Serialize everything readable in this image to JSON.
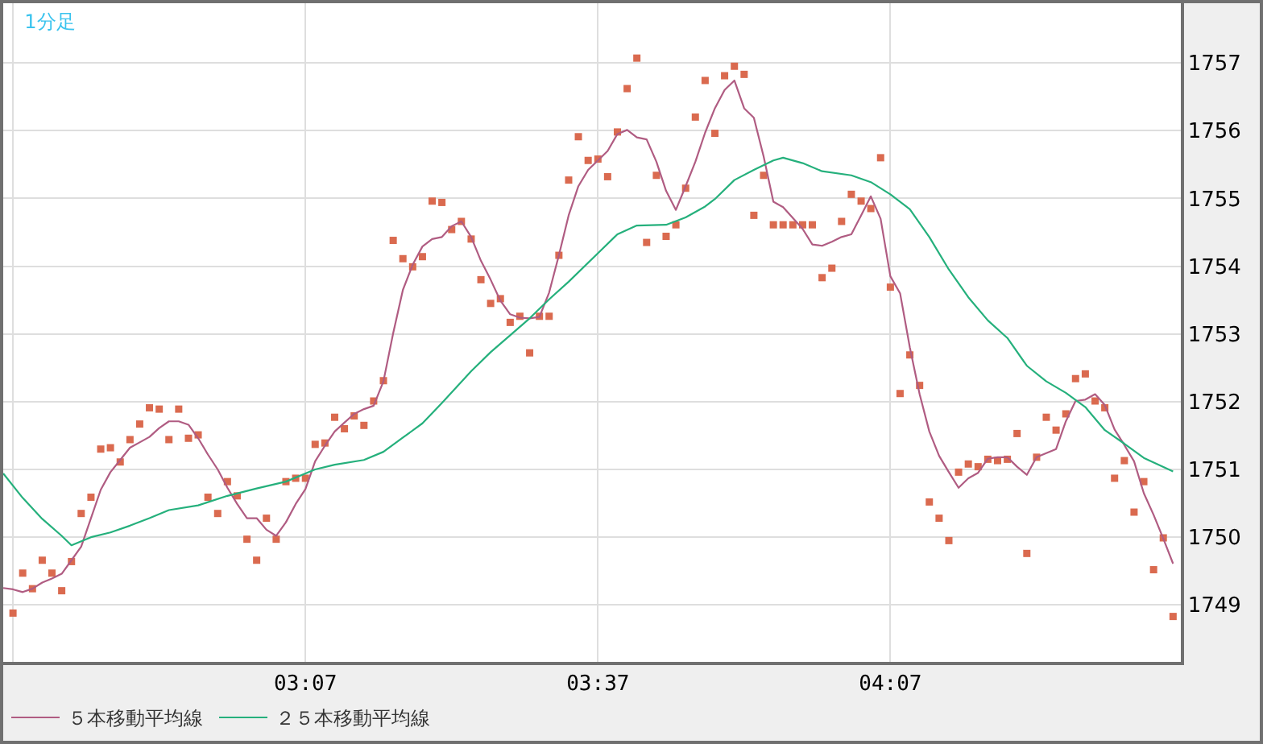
{
  "chart_data": {
    "type": "line",
    "title": "1分足",
    "x": [
      2.6,
      2.6167,
      2.6333,
      2.65,
      2.6667,
      2.6833,
      2.7,
      2.7167,
      2.7333,
      2.75,
      2.7667,
      2.7833,
      2.8,
      2.8167,
      2.8333,
      2.85,
      2.8667,
      2.8833,
      2.9,
      2.9167,
      2.9333,
      2.95,
      2.9667,
      2.9833,
      3,
      3.0167,
      3.0333,
      3.05,
      3.0667,
      3.0833,
      3.1,
      3.1167,
      3.1333,
      3.15,
      3.1667,
      3.1833,
      3.2,
      3.2167,
      3.2333,
      3.25,
      3.2667,
      3.2833,
      3.3,
      3.3167,
      3.3333,
      3.35,
      3.3667,
      3.3833,
      3.4,
      3.4167,
      3.4333,
      3.45,
      3.4667,
      3.4833,
      3.5,
      3.5167,
      3.5333,
      3.55,
      3.5667,
      3.5833,
      3.6,
      3.6167,
      3.6333,
      3.65,
      3.6667,
      3.6833,
      3.7,
      3.7167,
      3.7333,
      3.75,
      3.7667,
      3.7833,
      3.8,
      3.8167,
      3.8333,
      3.85,
      3.8667,
      3.8833,
      3.9,
      3.9167,
      3.9333,
      3.95,
      3.9667,
      3.9833,
      4,
      4.0167,
      4.0333,
      4.05,
      4.0667,
      4.0833,
      4.1,
      4.1167,
      4.1333,
      4.15,
      4.1667,
      4.1833,
      4.2,
      4.2167,
      4.2333,
      4.25,
      4.2667,
      4.2833,
      4.3,
      4.3167,
      4.3333,
      4.35,
      4.3667,
      4.3833,
      4.4,
      4.4167,
      4.4333,
      4.45,
      4.4667,
      4.4833,
      4.5,
      4.5167,
      4.5333,
      4.55,
      4.5667,
      4.5833,
      4.6
    ],
    "xlim": [
      2.6,
      4.6133
    ],
    "xticks": [
      {
        "value": 2.6167,
        "label": null
      },
      {
        "value": 3.1167,
        "label": "03:07"
      },
      {
        "value": 3.6167,
        "label": "03:37"
      },
      {
        "value": 4.1167,
        "label": "04:07"
      }
    ],
    "ylim": [
      1748.16,
      1757.88
    ],
    "yticks": [
      1749,
      1750,
      1751,
      1752,
      1753,
      1754,
      1755,
      1756,
      1757
    ],
    "grid": true,
    "legend": "bottom left",
    "series": [
      {
        "type": "scatter",
        "marker": "square",
        "color": "#da6a4f",
        "values": [
          null,
          1748.88,
          1749.47,
          1749.24,
          1749.66,
          1749.47,
          1749.21,
          1749.64,
          1750.35,
          1750.59,
          1751.3,
          1751.32,
          1751.11,
          1751.44,
          1751.67,
          1751.91,
          1751.89,
          1751.44,
          1751.89,
          1751.46,
          1751.51,
          1750.59,
          1750.35,
          1750.82,
          1750.61,
          1749.97,
          1749.66,
          1750.28,
          1749.97,
          1750.82,
          1750.87,
          1750.87,
          1751.37,
          1751.39,
          1751.77,
          1751.6,
          1751.79,
          1751.65,
          1752.01,
          1752.31,
          1754.38,
          1754.11,
          1753.99,
          1754.14,
          1754.96,
          1754.94,
          1754.54,
          1754.66,
          1754.4,
          1753.8,
          1753.45,
          1753.52,
          1753.17,
          1753.26,
          1752.72,
          1753.26,
          1753.26,
          1754.16,
          1755.27,
          1755.91,
          1755.56,
          1755.58,
          1755.32,
          1755.98,
          1756.62,
          1757.07,
          1754.35,
          1755.34,
          1754.44,
          1754.61,
          1755.15,
          1756.2,
          1756.74,
          1755.96,
          1756.81,
          1756.95,
          1756.83,
          1754.75,
          1755.34,
          1754.61,
          1754.61,
          1754.61,
          1754.61,
          1754.61,
          1753.83,
          1753.97,
          1754.66,
          1755.06,
          1754.96,
          1754.85,
          1755.6,
          1753.69,
          1752.12,
          1752.69,
          1752.24,
          1750.52,
          1750.28,
          1749.95,
          1750.96,
          1751.08,
          1751.04,
          1751.15,
          1751.13,
          1751.15,
          1751.53,
          1749.76,
          1751.18,
          1751.77,
          1751.58,
          1751.82,
          1752.34,
          1752.41,
          1752.01,
          1751.91,
          1750.87,
          1751.13,
          1750.37,
          1750.82,
          1749.52,
          1749.99,
          1748.83
        ]
      },
      {
        "name": "５本移動平均線",
        "color": "#b05c82",
        "values": [
          1749.25,
          1749.23,
          1749.19,
          1749.24,
          1749.33,
          1749.39,
          1749.46,
          1749.66,
          1749.86,
          1750.28,
          1750.7,
          1750.96,
          1751.14,
          1751.32,
          1751.4,
          1751.48,
          1751.61,
          1751.71,
          1751.71,
          1751.66,
          1751.46,
          1751.22,
          1751.0,
          1750.73,
          1750.49,
          1750.28,
          1750.28,
          1750.11,
          1750.02,
          1750.22,
          1750.49,
          1750.71,
          1751.12,
          1751.35,
          1751.56,
          1751.69,
          1751.82,
          1751.89,
          1751.94,
          1752.3,
          1753.01,
          1753.65,
          1754.02,
          1754.29,
          1754.4,
          1754.43,
          1754.59,
          1754.66,
          1754.43,
          1754.08,
          1753.8,
          1753.49,
          1753.29,
          1753.24,
          1753.23,
          1753.25,
          1753.61,
          1754.16,
          1754.75,
          1755.18,
          1755.42,
          1755.56,
          1755.7,
          1755.95,
          1756.01,
          1755.9,
          1755.87,
          1755.54,
          1755.11,
          1754.83,
          1755.18,
          1755.54,
          1755.97,
          1756.33,
          1756.6,
          1756.74,
          1756.33,
          1756.19,
          1755.62,
          1754.95,
          1754.87,
          1754.71,
          1754.55,
          1754.32,
          1754.3,
          1754.36,
          1754.43,
          1754.47,
          1754.75,
          1755.03,
          1754.7,
          1753.85,
          1753.6,
          1752.8,
          1752.11,
          1751.56,
          1751.2,
          1750.96,
          1750.73,
          1750.87,
          1750.95,
          1751.16,
          1751.18,
          1751.18,
          1751.04,
          1750.92,
          1751.18,
          1751.24,
          1751.3,
          1751.71,
          1752.01,
          1752.03,
          1752.11,
          1751.95,
          1751.59,
          1751.36,
          1751.12,
          1750.65,
          1750.33,
          1749.98,
          1749.61
        ]
      },
      {
        "name": "２５本移動平均線",
        "color": "#25b07c",
        "x": [
          2.6,
          2.6333,
          2.6667,
          2.7,
          2.7167,
          2.75,
          2.7833,
          2.8167,
          2.85,
          2.8833,
          2.9333,
          2.9833,
          3.0333,
          3.0833,
          3.1333,
          3.1667,
          3.2167,
          3.25,
          3.2833,
          3.3167,
          3.35,
          3.4,
          3.4333,
          3.4667,
          3.5,
          3.5333,
          3.5667,
          3.6167,
          3.65,
          3.6833,
          3.7333,
          3.7667,
          3.8,
          3.8167,
          3.85,
          3.8833,
          3.9167,
          3.9333,
          3.9667,
          4,
          4.05,
          4.0833,
          4.1167,
          4.15,
          4.1833,
          4.2167,
          4.25,
          4.2833,
          4.3167,
          4.35,
          4.3833,
          4.4167,
          4.45,
          4.4833,
          4.5167,
          4.55,
          4.6
        ],
        "values": [
          1750.94,
          1750.58,
          1750.27,
          1750.02,
          1749.88,
          1750.0,
          1750.07,
          1750.17,
          1750.28,
          1750.4,
          1750.47,
          1750.61,
          1750.72,
          1750.82,
          1751.0,
          1751.07,
          1751.14,
          1751.26,
          1751.47,
          1751.68,
          1751.98,
          1752.45,
          1752.73,
          1752.98,
          1753.23,
          1753.51,
          1753.77,
          1754.19,
          1754.47,
          1754.6,
          1754.61,
          1754.72,
          1754.88,
          1754.99,
          1755.27,
          1755.42,
          1755.56,
          1755.6,
          1755.52,
          1755.4,
          1755.34,
          1755.24,
          1755.06,
          1754.84,
          1754.43,
          1753.95,
          1753.54,
          1753.2,
          1752.94,
          1752.53,
          1752.3,
          1752.13,
          1751.92,
          1751.58,
          1751.38,
          1751.17,
          1750.97
        ]
      }
    ]
  }
}
